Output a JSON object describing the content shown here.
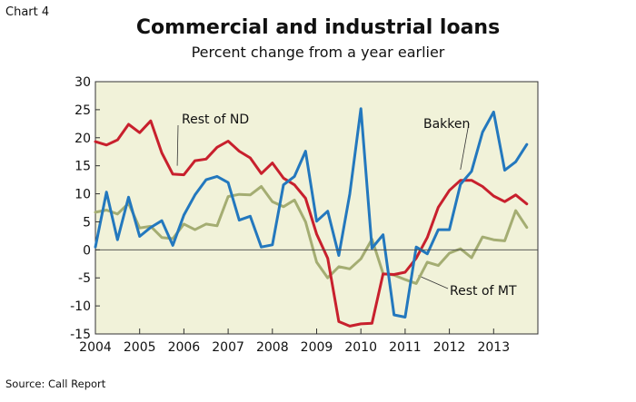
{
  "header": {
    "chart_label": "Chart 4",
    "title": "Commercial and industrial loans",
    "subtitle": "Percent change from a year earlier"
  },
  "footer": {
    "source": "Source: Call Report"
  },
  "colors": {
    "plot_background": "#f1f2d9",
    "bakken": "#2378be",
    "rest_of_nd": "#c8202d",
    "rest_of_mt": "#a4ad72"
  },
  "chart_data": {
    "type": "line",
    "title": "Commercial and industrial loans",
    "subtitle": "Percent change from a year earlier",
    "xlim": [
      2004,
      2014
    ],
    "ylim": [
      -15,
      30
    ],
    "x_ticks": [
      "2004",
      "2005",
      "2006",
      "2007",
      "2008",
      "2009",
      "2010",
      "2011",
      "2012",
      "2013"
    ],
    "y_ticks": [
      "30",
      "25",
      "20",
      "15",
      "10",
      "5",
      "0",
      "-5",
      "-10",
      "-15"
    ],
    "grid": false,
    "x": [
      2004.0,
      2004.25,
      2004.5,
      2004.75,
      2005.0,
      2005.25,
      2005.5,
      2005.75,
      2006.0,
      2006.25,
      2006.5,
      2006.75,
      2007.0,
      2007.25,
      2007.5,
      2007.75,
      2008.0,
      2008.25,
      2008.5,
      2008.75,
      2009.0,
      2009.25,
      2009.5,
      2009.75,
      2010.0,
      2010.25,
      2010.5,
      2010.75,
      2011.0,
      2011.25,
      2011.5,
      2011.75,
      2012.0,
      2012.25,
      2012.5,
      2012.75,
      2013.0,
      2013.25,
      2013.5,
      2013.75,
      2014.0
    ],
    "series": [
      {
        "name": "Bakken",
        "values": [
          0.5,
          10.3,
          1.8,
          9.4,
          2.4,
          4.0,
          5.2,
          0.8,
          6.2,
          9.8,
          12.5,
          13.1,
          12.0,
          5.3,
          6.0,
          0.5,
          0.9,
          11.6,
          13.1,
          17.6,
          5.1,
          6.9,
          -1.0,
          10.0,
          25.2,
          0.3,
          2.7,
          -11.6,
          -12.0,
          0.5,
          -0.7,
          3.6,
          3.6,
          11.7,
          14.0,
          21.0,
          24.6,
          14.2,
          15.7,
          18.8,
          null
        ]
      },
      {
        "name": "Rest of ND",
        "values": [
          19.3,
          18.7,
          19.6,
          22.4,
          20.9,
          23.0,
          17.3,
          13.5,
          13.4,
          15.9,
          16.2,
          18.3,
          19.4,
          17.6,
          16.4,
          13.6,
          15.5,
          12.8,
          11.6,
          9.2,
          2.8,
          -1.5,
          -12.8,
          -13.6,
          -13.2,
          -13.1,
          -4.3,
          -4.4,
          -4.0,
          -1.5,
          2.2,
          7.6,
          10.6,
          12.4,
          12.4,
          11.3,
          9.6,
          8.6,
          9.8,
          8.2,
          null
        ]
      },
      {
        "name": "Rest of MT",
        "values": [
          6.7,
          7.1,
          6.4,
          8.3,
          3.9,
          4.2,
          2.2,
          2.0,
          4.6,
          3.6,
          4.6,
          4.3,
          9.5,
          9.9,
          9.8,
          11.3,
          8.6,
          7.7,
          8.9,
          5.0,
          -2.2,
          -5.0,
          -3.0,
          -3.4,
          -1.6,
          1.9,
          -4.2,
          -4.5,
          -5.3,
          -6.0,
          -2.2,
          -2.8,
          -0.6,
          0.2,
          -1.4,
          2.3,
          1.8,
          1.6,
          7.0,
          4.0,
          null
        ]
      }
    ],
    "annotations": [
      {
        "text": "Rest of ND",
        "series": "Rest of ND"
      },
      {
        "text": "Bakken",
        "series": "Bakken"
      },
      {
        "text": "Rest of MT",
        "series": "Rest of MT"
      }
    ]
  }
}
